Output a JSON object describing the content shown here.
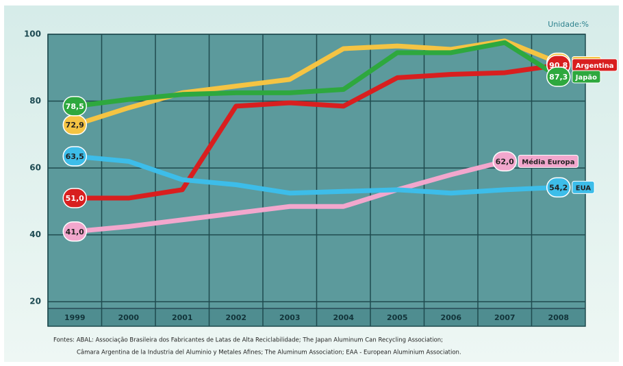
{
  "chart_data": {
    "type": "line",
    "unit_label": "Unidade:%",
    "categories": [
      "1999",
      "2000",
      "2001",
      "2002",
      "2003",
      "2004",
      "2005",
      "2006",
      "2007",
      "2008"
    ],
    "ylim": [
      18,
      100
    ],
    "yticks": [
      20,
      40,
      60,
      80,
      100
    ],
    "grid": true,
    "series": [
      {
        "name": "Brasil",
        "color": "#f5c443",
        "values": [
          72.9,
          78,
          82.5,
          84.5,
          86.5,
          95.7,
          96.5,
          95.5,
          98,
          91.5
        ],
        "value_labels": [
          "72,9",
          null,
          null,
          null,
          null,
          null,
          null,
          null,
          null,
          "91,5"
        ]
      },
      {
        "name": "Argentina",
        "color": "#d81f1f",
        "values": [
          51.0,
          51,
          53.5,
          78.5,
          79.5,
          78.5,
          87,
          88,
          88.5,
          90.8
        ],
        "value_labels": [
          "51,0",
          null,
          null,
          null,
          null,
          null,
          null,
          null,
          null,
          "90,8"
        ]
      },
      {
        "name": "Japão",
        "color": "#2ea83e",
        "values": [
          78.5,
          80.5,
          82,
          82.5,
          82.5,
          83.5,
          94.5,
          94.5,
          97.5,
          87.3
        ],
        "value_labels": [
          "78,5",
          null,
          null,
          null,
          null,
          null,
          null,
          null,
          null,
          "87,3"
        ]
      },
      {
        "name": "Média Europa",
        "color": "#f2a7cd",
        "values": [
          41.0,
          42.5,
          44.5,
          46.5,
          48.5,
          48.5,
          53.5,
          58,
          62.0,
          null
        ],
        "value_labels": [
          "41,0",
          null,
          null,
          null,
          null,
          null,
          null,
          null,
          "62,0",
          null
        ]
      },
      {
        "name": "EUA",
        "color": "#3dbde9",
        "values": [
          63.5,
          62,
          56.5,
          55,
          52.5,
          53,
          53.5,
          52.5,
          53.5,
          54.2
        ],
        "value_labels": [
          "63,5",
          null,
          null,
          null,
          null,
          null,
          null,
          null,
          null,
          "54,2"
        ]
      }
    ],
    "notes": [
      "Fontes: ABAL: Associação Brasileira dos Fabricantes de Latas de Alta Reciclabilidade; The Japan Aluminum Can Recycling Association;",
      "Câmara Argentina de la Industria del Aluminio y Metales Afines; The Aluminum Association; EAA - European Aluminium Association."
    ]
  }
}
